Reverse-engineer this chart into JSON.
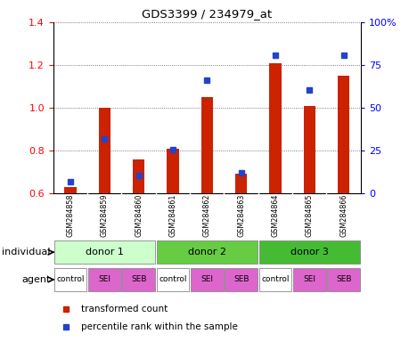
{
  "title": "GDS3399 / 234979_at",
  "samples": [
    "GSM284858",
    "GSM284859",
    "GSM284860",
    "GSM284861",
    "GSM284862",
    "GSM284863",
    "GSM284864",
    "GSM284865",
    "GSM284866"
  ],
  "red_values": [
    0.63,
    1.0,
    0.76,
    0.81,
    1.05,
    0.69,
    1.21,
    1.01,
    1.15
  ],
  "blue_values": [
    0.655,
    0.855,
    0.685,
    0.805,
    1.13,
    0.695,
    1.245,
    1.085,
    1.245
  ],
  "ylim": [
    0.6,
    1.4
  ],
  "yticks_left": [
    0.6,
    0.8,
    1.0,
    1.2,
    1.4
  ],
  "ytick_right_labels": [
    "0",
    "25",
    "50",
    "75",
    "100%"
  ],
  "bar_baseline": 0.6,
  "bar_color": "#cc2200",
  "blue_color": "#2244cc",
  "donor_labels": [
    "donor 1",
    "donor 2",
    "donor 3"
  ],
  "donor_colors": [
    "#ccffcc",
    "#66cc44",
    "#44bb33"
  ],
  "agent_labels": [
    "control",
    "SEI",
    "SEB",
    "control",
    "SEI",
    "SEB",
    "control",
    "SEI",
    "SEB"
  ],
  "agent_color_sei_seb": "#dd66cc",
  "agent_color_control": "#ffffff",
  "individual_label": "individual",
  "agent_label": "agent",
  "legend_red": "transformed count",
  "legend_blue": "percentile rank within the sample",
  "grid_color": "#555555",
  "xticklabel_bg": "#cccccc",
  "bar_width": 0.35
}
